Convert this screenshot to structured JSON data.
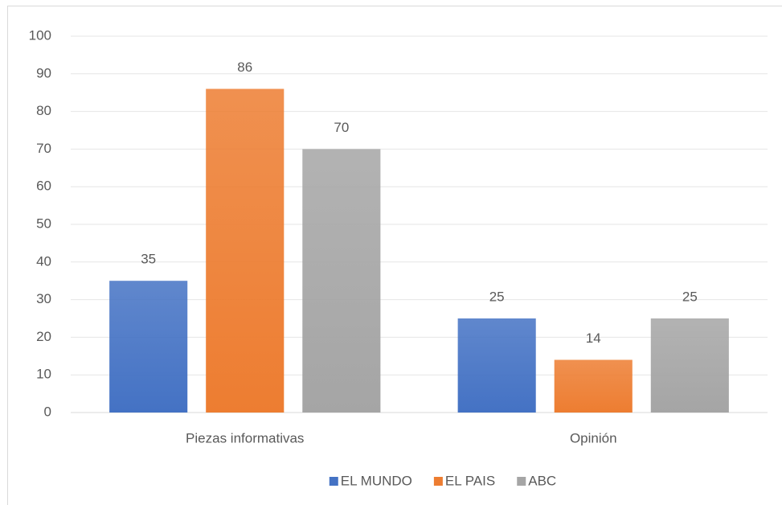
{
  "chart_data": {
    "type": "bar",
    "categories": [
      "Piezas informativas",
      "Opinión"
    ],
    "series": [
      {
        "name": "EL MUNDO",
        "color": "#4472c4",
        "values": [
          35,
          25
        ]
      },
      {
        "name": "EL PAIS",
        "color": "#ed7d31",
        "values": [
          86,
          14
        ]
      },
      {
        "name": "ABC",
        "color": "#a5a5a5",
        "values": [
          70,
          25
        ]
      }
    ],
    "ylim": [
      0,
      100
    ],
    "yticks": [
      0,
      10,
      20,
      30,
      40,
      50,
      60,
      70,
      80,
      90,
      100
    ],
    "grid": true,
    "legend": "bottom",
    "data_labels": true
  }
}
